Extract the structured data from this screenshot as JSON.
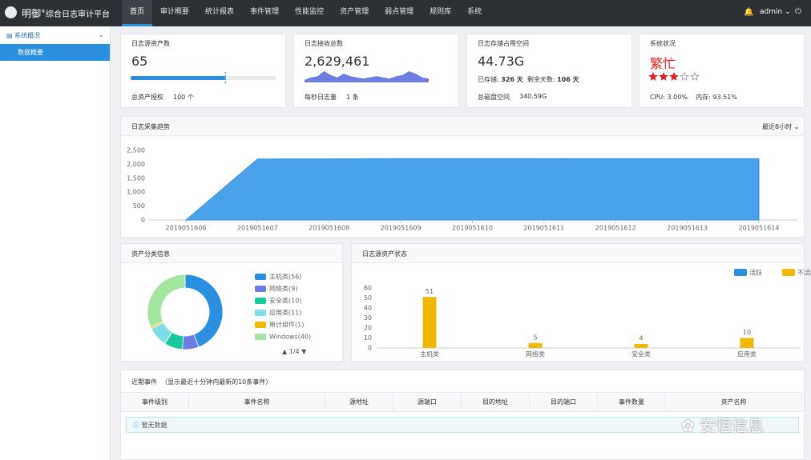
{
  "header": {
    "brand": "明御",
    "brand_mark": "®",
    "product": "综合日志审计平台",
    "nav": [
      "首页",
      "审计概要",
      "统计报表",
      "事件管理",
      "性能监控",
      "资产管理",
      "弱点管理",
      "规则库",
      "系统"
    ],
    "active_nav": 0,
    "user": "admin"
  },
  "sidebar": {
    "section": "系统概况",
    "items": [
      "数据概要"
    ]
  },
  "cards": [
    {
      "title": "日志源资产数",
      "value": 65,
      "progress_label": "总资产授权",
      "progress_total": {
        "value": 100,
        "label": "100 个"
      }
    },
    {
      "title": "日志接收总数",
      "value": {
        "value": 2629461,
        "label": "2,629,461"
      },
      "sparkline": [
        2,
        4,
        5,
        9,
        6,
        4,
        7,
        5,
        4,
        3,
        4,
        5,
        4,
        3,
        5,
        6,
        9,
        7,
        4,
        3
      ],
      "rate_label": "每秒日志量",
      "rate": "1 条"
    },
    {
      "title": "日志存储占用空间",
      "value": "44.73G",
      "stored_label": "已存储:",
      "stored": "326 天",
      "remaining_label": "剩余天数:",
      "remaining": "106 天",
      "disk_label": "总磁盘空间",
      "disk": "340.59G"
    },
    {
      "title": "系统状况",
      "status": "繁忙",
      "rating": 3,
      "rating_max": 5,
      "cpu_label": "CPU:",
      "cpu": "3.00%",
      "mem_label": "内存:",
      "mem": "93.51%"
    }
  ],
  "chart_data": [
    {
      "type": "area",
      "title": "日志采集趋势",
      "range_selector": "最近8小时",
      "categories": [
        "2019051606",
        "2019051607",
        "2019051608",
        "2019051609",
        "2019051610",
        "2019051611",
        "2019051612",
        "2019051613",
        "2019051614"
      ],
      "values": [
        0,
        2190,
        2195,
        2205,
        2205,
        2205,
        2200,
        2200,
        2200
      ],
      "color": "#4aa3ea",
      "ylim": [
        0,
        2500
      ],
      "yticks": [
        0,
        500,
        {
          "value": 1000,
          "label": "1,000"
        },
        {
          "value": 1500,
          "label": "1,500"
        },
        {
          "value": 2000,
          "label": "2,000"
        },
        {
          "value": 2500,
          "label": "2,500"
        }
      ]
    },
    {
      "type": "donut",
      "title": "资产分类信息",
      "categories": [
        "主机类(56)",
        "网络类(9)",
        "安全类(10)",
        "应用类(11)",
        "审计组件(1)",
        "Windows(40)"
      ],
      "values": [
        56,
        9,
        10,
        11,
        1,
        40
      ],
      "colors": [
        "#2b8fe0",
        "#6c7de6",
        "#18c99b",
        "#7fdde8",
        "#f5b800",
        "#a3e6a0"
      ],
      "pager": "1/4"
    },
    {
      "type": "bar",
      "title": "日志源资产状态",
      "categories": [
        "主机类",
        "网络类",
        "安全类",
        "应用类"
      ],
      "series": [
        {
          "name": "活跃",
          "color": "#2b8fe0",
          "values": [
            0,
            0,
            0,
            0
          ]
        },
        {
          "name": "不活跃",
          "color": "#f2b705",
          "values": [
            51,
            5,
            4,
            10
          ]
        }
      ],
      "ylim": [
        0,
        60
      ],
      "yticks": [
        0,
        10,
        20,
        30,
        40,
        50,
        60
      ]
    }
  ],
  "table": {
    "title": "近期事件",
    "subtitle": "（显示最近十分钟内最新的10条事件）",
    "columns": [
      "事件级别",
      "事件名称",
      "源地址",
      "源端口",
      "目的地址",
      "目的端口",
      "事件数量",
      "资产名称"
    ],
    "empty": "暂无数据"
  },
  "watermark": "安恒信息"
}
